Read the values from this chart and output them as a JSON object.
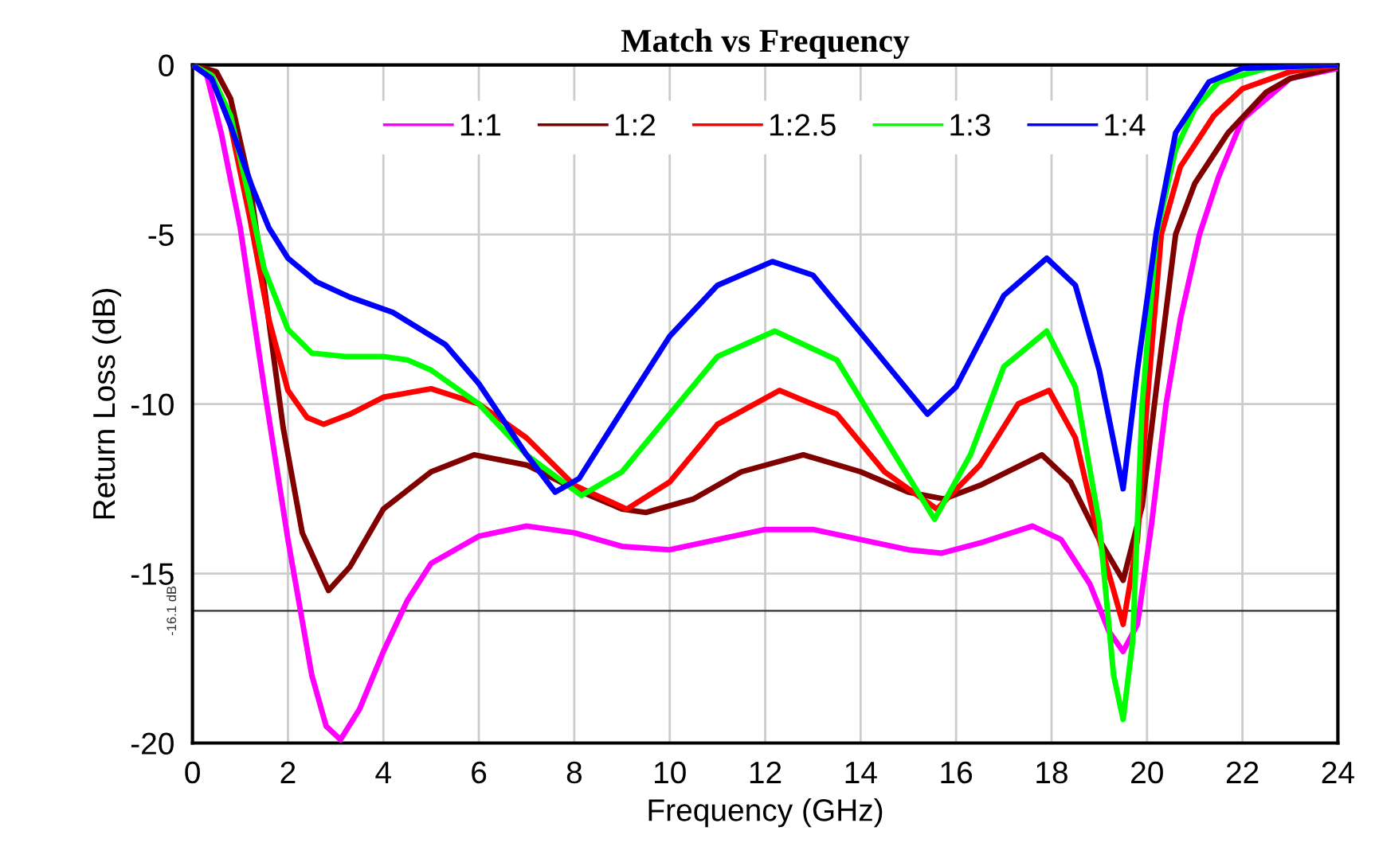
{
  "chart_data": {
    "type": "line",
    "title": "Match vs Frequency",
    "xlabel": "Frequency (GHz)",
    "ylabel": "Return Loss (dB)",
    "xlim": [
      0,
      24
    ],
    "ylim": [
      -20,
      0
    ],
    "xticks": [
      0,
      2,
      4,
      6,
      8,
      10,
      12,
      14,
      16,
      18,
      20,
      22,
      24
    ],
    "yticks": [
      -20,
      -15,
      -10,
      -5,
      0
    ],
    "grid": true,
    "legend": "top",
    "marker": "none",
    "line_style": "solid",
    "ref_lines": [
      {
        "axis": "y",
        "value": -16.1,
        "label": "-16.1 dB",
        "color": "#333333"
      }
    ],
    "series": [
      {
        "name": "1:1",
        "color": "#ff00ff",
        "x": [
          0,
          0.3,
          0.6,
          1,
          1.5,
          2,
          2.5,
          2.8,
          3.1,
          3.5,
          4,
          4.5,
          5,
          6,
          7,
          8,
          9,
          10,
          11,
          12,
          13,
          14,
          15,
          15.7,
          16.5,
          17.6,
          18.2,
          18.8,
          19.2,
          19.5,
          19.8,
          20.1,
          20.4,
          20.7,
          21.1,
          21.5,
          22,
          23,
          24
        ],
        "values": [
          0,
          -0.3,
          -2,
          -4.8,
          -9.5,
          -14,
          -18,
          -19.5,
          -19.9,
          -19,
          -17.3,
          -15.8,
          -14.7,
          -13.9,
          -13.6,
          -13.8,
          -14.2,
          -14.3,
          -14,
          -13.7,
          -13.7,
          -14,
          -14.3,
          -14.4,
          -14.1,
          -13.6,
          -14,
          -15.3,
          -16.7,
          -17.3,
          -16.5,
          -13.5,
          -10,
          -7.5,
          -5,
          -3.3,
          -1.6,
          -0.4,
          -0.1
        ]
      },
      {
        "name": "1:2",
        "color": "#800000",
        "x": [
          0,
          0.5,
          0.8,
          1.2,
          1.5,
          1.9,
          2.3,
          2.85,
          3.3,
          4,
          5,
          5.9,
          7,
          8,
          9,
          9.5,
          10.5,
          11.5,
          12.8,
          14,
          15,
          15.75,
          16.5,
          17.8,
          18.4,
          19,
          19.5,
          19.9,
          20.2,
          20.6,
          21,
          21.7,
          22.5,
          23,
          24
        ],
        "values": [
          0,
          -0.2,
          -1,
          -3.5,
          -6.5,
          -10.7,
          -13.8,
          -15.5,
          -14.8,
          -13.1,
          -12,
          -11.5,
          -11.8,
          -12.5,
          -13.1,
          -13.2,
          -12.8,
          -12,
          -11.5,
          -12,
          -12.6,
          -12.8,
          -12.4,
          -11.5,
          -12.3,
          -14,
          -15.2,
          -13,
          -9.5,
          -5,
          -3.5,
          -2,
          -0.8,
          -0.4,
          -0.05
        ]
      },
      {
        "name": "1:2.5",
        "color": "#ff0000",
        "x": [
          0,
          0.4,
          0.8,
          1.2,
          1.6,
          2,
          2.4,
          2.75,
          3.3,
          4,
          5,
          6,
          7,
          8,
          9.1,
          10,
          11,
          12.3,
          13.5,
          14.5,
          15.6,
          16.5,
          17.3,
          17.95,
          18.5,
          19,
          19.5,
          19.8,
          20,
          20.3,
          20.7,
          21.4,
          22,
          23,
          24
        ],
        "values": [
          0,
          -0.3,
          -1.8,
          -4.5,
          -7.5,
          -9.6,
          -10.4,
          -10.6,
          -10.3,
          -9.8,
          -9.55,
          -10,
          -11,
          -12.4,
          -13.1,
          -12.3,
          -10.6,
          -9.6,
          -10.3,
          -12,
          -13.1,
          -11.8,
          -10,
          -9.6,
          -11,
          -14,
          -16.5,
          -14,
          -10,
          -5,
          -3,
          -1.5,
          -0.7,
          -0.2,
          0
        ]
      },
      {
        "name": "1:3",
        "color": "#00ff00",
        "x": [
          0,
          0.4,
          0.8,
          1.2,
          1.5,
          2,
          2.5,
          3.2,
          4,
          4.5,
          5,
          6,
          7,
          8.15,
          9,
          10,
          11,
          12.2,
          13.5,
          14.5,
          15.55,
          16.3,
          17,
          17.9,
          18.5,
          19,
          19.3,
          19.5,
          19.7,
          19.9,
          20.2,
          20.6,
          21,
          21.5,
          22.5,
          24
        ],
        "values": [
          0,
          -0.3,
          -1.5,
          -4,
          -6,
          -7.8,
          -8.5,
          -8.6,
          -8.6,
          -8.7,
          -9,
          -10,
          -11.5,
          -12.7,
          -12,
          -10.3,
          -8.6,
          -7.85,
          -8.7,
          -11,
          -13.4,
          -11.5,
          -8.9,
          -7.85,
          -9.5,
          -13.5,
          -18,
          -19.3,
          -17,
          -10,
          -5,
          -2.5,
          -1.3,
          -0.5,
          -0.1,
          0
        ]
      },
      {
        "name": "1:4",
        "color": "#0000ff",
        "x": [
          0,
          0.4,
          0.8,
          1.25,
          1.6,
          2,
          2.6,
          3.3,
          4.2,
          5.3,
          6,
          7,
          7.6,
          8.1,
          9,
          10,
          11,
          12.15,
          13,
          14,
          15.4,
          16,
          17,
          17.9,
          18.5,
          19,
          19.5,
          19.8,
          20.2,
          20.6,
          21.3,
          22,
          24
        ],
        "values": [
          0,
          -0.4,
          -1.8,
          -3.6,
          -4.8,
          -5.7,
          -6.4,
          -6.85,
          -7.3,
          -8.25,
          -9.4,
          -11.5,
          -12.6,
          -12.2,
          -10.2,
          -8,
          -6.5,
          -5.8,
          -6.2,
          -7.9,
          -10.3,
          -9.5,
          -6.8,
          -5.7,
          -6.5,
          -9,
          -12.5,
          -9,
          -4.9,
          -2,
          -0.5,
          -0.1,
          0
        ]
      }
    ]
  }
}
